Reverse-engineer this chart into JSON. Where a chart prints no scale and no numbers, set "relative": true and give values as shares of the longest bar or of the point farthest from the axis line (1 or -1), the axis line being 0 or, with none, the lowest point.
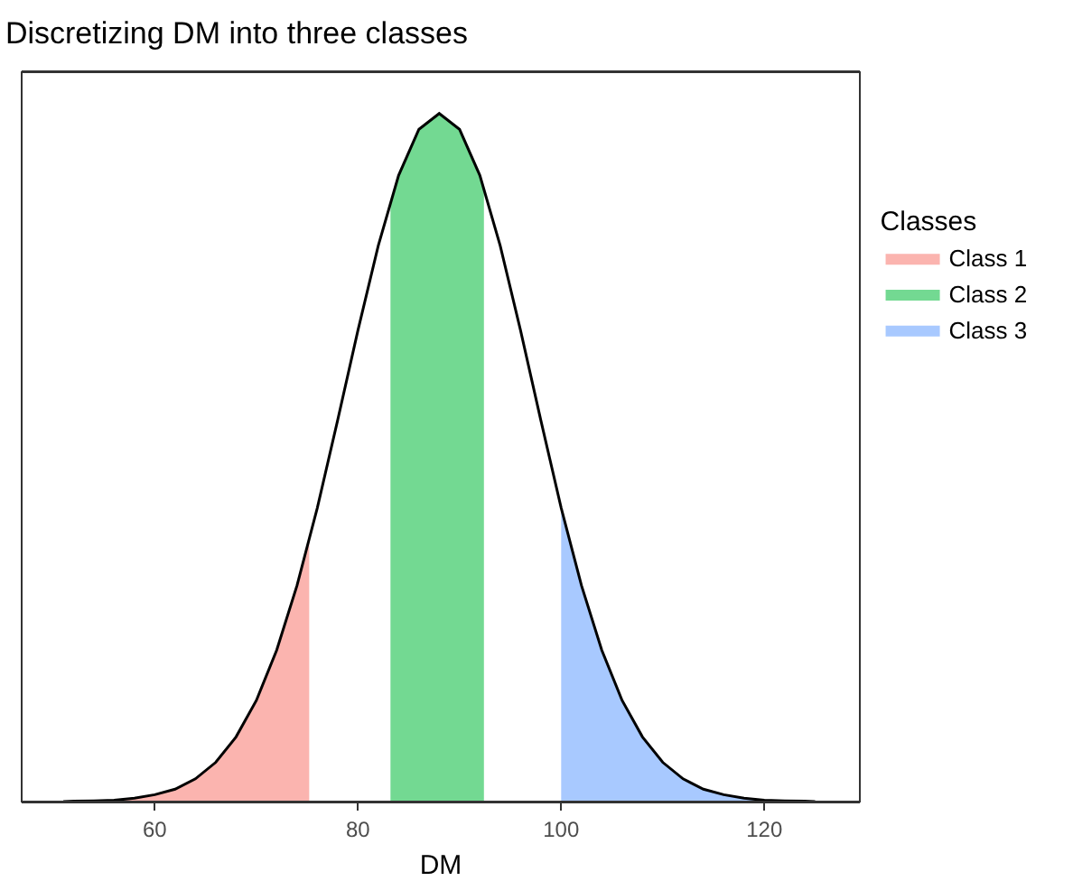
{
  "chart_data": {
    "type": "area",
    "title": "Discretizing DM into three classes",
    "xlabel": "DM",
    "legend_title": "Classes",
    "relative": true,
    "xlim": [
      46.9,
      129.4
    ],
    "xticks": [
      60,
      80,
      100,
      120
    ],
    "grid": false,
    "legend": "right",
    "series": [
      {
        "name": "Class 1",
        "color": "#f8766d",
        "x": [
          51,
          52,
          54,
          56,
          58,
          60,
          62,
          64,
          66,
          68,
          70,
          72,
          74,
          75.2
        ],
        "values": [
          0,
          0.0005,
          0.001,
          0.002,
          0.005,
          0.01,
          0.018,
          0.033,
          0.057,
          0.094,
          0.147,
          0.22,
          0.314,
          0.38
        ]
      },
      {
        "name": "Class 2",
        "color": "#00ba38",
        "x": [
          83.2,
          84,
          86,
          88,
          90,
          92,
          92.4
        ],
        "values": [
          0.873,
          0.91,
          0.977,
          1,
          0.977,
          0.91,
          0.892
        ]
      },
      {
        "name": "Class 3",
        "color": "#619cff",
        "x": [
          100,
          102,
          104,
          106,
          108,
          110,
          112,
          114,
          116,
          118,
          120,
          122,
          124,
          125
        ],
        "values": [
          0.427,
          0.314,
          0.22,
          0.147,
          0.094,
          0.057,
          0.033,
          0.018,
          0.01,
          0.005,
          0.002,
          0.001,
          0.0005,
          0
        ]
      },
      {
        "color": "#000000",
        "type": "line",
        "x": [
          51,
          52,
          54,
          56,
          58,
          60,
          62,
          64,
          66,
          68,
          70,
          72,
          74,
          76,
          78,
          80,
          82,
          84,
          86,
          88,
          90,
          92,
          94,
          96,
          98,
          100,
          102,
          104,
          106,
          108,
          110,
          112,
          114,
          116,
          118,
          120,
          122,
          124,
          125
        ],
        "values": [
          0,
          0.0005,
          0.001,
          0.002,
          0.005,
          0.01,
          0.018,
          0.033,
          0.057,
          0.094,
          0.147,
          0.22,
          0.314,
          0.427,
          0.554,
          0.685,
          0.808,
          0.91,
          0.977,
          1,
          0.977,
          0.91,
          0.808,
          0.685,
          0.554,
          0.427,
          0.314,
          0.22,
          0.147,
          0.094,
          0.057,
          0.033,
          0.018,
          0.01,
          0.005,
          0.002,
          0.001,
          0.0005,
          0
        ]
      }
    ]
  }
}
